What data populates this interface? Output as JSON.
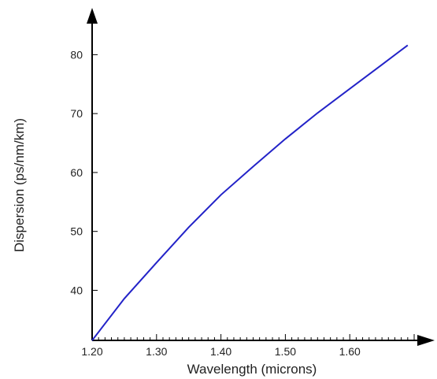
{
  "chart_data": {
    "type": "line",
    "title": "",
    "xlabel": "Wavelength (microns)",
    "ylabel": "Dispersion (ps/nm/km)",
    "xlim": [
      1.2,
      1.7
    ],
    "ylim": [
      31.5,
      85
    ],
    "x_ticks": [
      {
        "value": 1.2,
        "label": "1.20"
      },
      {
        "value": 1.3,
        "label": "1.30"
      },
      {
        "value": 1.4,
        "label": "1.40"
      },
      {
        "value": 1.5,
        "label": "1.50"
      },
      {
        "value": 1.6,
        "label": "1.60"
      }
    ],
    "y_ticks": [
      {
        "value": 40,
        "label": "40"
      },
      {
        "value": 50,
        "label": "50"
      },
      {
        "value": 60,
        "label": "60"
      },
      {
        "value": 70,
        "label": "70"
      },
      {
        "value": 80,
        "label": "80"
      }
    ],
    "x_minor_step": 0.01,
    "grid": false,
    "legend": "none",
    "series": [
      {
        "color": "#2323c8",
        "x": [
          1.2,
          1.25,
          1.3,
          1.35,
          1.4,
          1.45,
          1.5,
          1.55,
          1.6,
          1.65,
          1.69
        ],
        "y": [
          31.5,
          38.6,
          44.7,
          50.7,
          56.2,
          61.0,
          65.7,
          70.1,
          74.2,
          78.3,
          81.6
        ]
      }
    ]
  }
}
